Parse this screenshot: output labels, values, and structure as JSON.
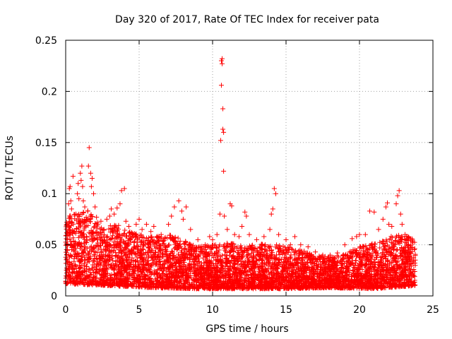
{
  "chart_data": {
    "type": "scatter",
    "title": "Day 320 of 2017, Rate Of TEC Index for receiver pata",
    "xlabel": "GPS time / hours",
    "ylabel": "ROTI / TECUs",
    "xlim": [
      0,
      25
    ],
    "ylim": [
      0,
      0.25
    ],
    "xticks": [
      0,
      5,
      10,
      15,
      20,
      25
    ],
    "yticks": [
      0,
      0.05,
      0.1,
      0.15,
      0.2,
      0.25
    ],
    "xtick_labels": [
      "0",
      "5",
      "10",
      "15",
      "20",
      "25"
    ],
    "ytick_labels": [
      "0",
      "0.05",
      "0.1",
      "0.15",
      "0.2",
      "0.25"
    ],
    "grid": true,
    "marker": "+",
    "color": "#ff0000",
    "series": [
      {
        "name": "ROTI",
        "points": [
          [
            0.1,
            0.07
          ],
          [
            0.2,
            0.09
          ],
          [
            0.25,
            0.105
          ],
          [
            0.3,
            0.107
          ],
          [
            0.35,
            0.093
          ],
          [
            0.4,
            0.085
          ],
          [
            0.5,
            0.117
          ],
          [
            0.55,
            0.063
          ],
          [
            0.7,
            0.08
          ],
          [
            0.8,
            0.1
          ],
          [
            0.85,
            0.11
          ],
          [
            0.9,
            0.095
          ],
          [
            1.0,
            0.12
          ],
          [
            1.05,
            0.113
          ],
          [
            1.1,
            0.127
          ],
          [
            1.15,
            0.107
          ],
          [
            1.2,
            0.093
          ],
          [
            1.3,
            0.087
          ],
          [
            1.4,
            0.077
          ],
          [
            1.5,
            0.083
          ],
          [
            1.55,
            0.127
          ],
          [
            1.6,
            0.145
          ],
          [
            1.7,
            0.12
          ],
          [
            1.75,
            0.107
          ],
          [
            1.8,
            0.115
          ],
          [
            1.9,
            0.1
          ],
          [
            2.0,
            0.087
          ],
          [
            2.1,
            0.077
          ],
          [
            2.2,
            0.07
          ],
          [
            2.4,
            0.073
          ],
          [
            2.6,
            0.065
          ],
          [
            2.8,
            0.075
          ],
          [
            3.0,
            0.078
          ],
          [
            3.1,
            0.085
          ],
          [
            3.3,
            0.08
          ],
          [
            3.5,
            0.086
          ],
          [
            3.7,
            0.09
          ],
          [
            3.8,
            0.103
          ],
          [
            4.0,
            0.105
          ],
          [
            4.1,
            0.073
          ],
          [
            4.3,
            0.068
          ],
          [
            4.6,
            0.06
          ],
          [
            4.8,
            0.07
          ],
          [
            5.0,
            0.075
          ],
          [
            5.2,
            0.065
          ],
          [
            5.5,
            0.07
          ],
          [
            5.8,
            0.063
          ],
          [
            6.0,
            0.068
          ],
          [
            6.5,
            0.06
          ],
          [
            7.0,
            0.07
          ],
          [
            7.2,
            0.078
          ],
          [
            7.4,
            0.087
          ],
          [
            7.7,
            0.093
          ],
          [
            7.9,
            0.083
          ],
          [
            8.0,
            0.075
          ],
          [
            8.2,
            0.087
          ],
          [
            8.5,
            0.065
          ],
          [
            9.0,
            0.055
          ],
          [
            9.5,
            0.05
          ],
          [
            9.8,
            0.058
          ],
          [
            10.0,
            0.055
          ],
          [
            10.3,
            0.06
          ],
          [
            10.5,
            0.08
          ],
          [
            10.55,
            0.152
          ],
          [
            10.6,
            0.206
          ],
          [
            10.6,
            0.23
          ],
          [
            10.65,
            0.232
          ],
          [
            10.65,
            0.227
          ],
          [
            10.7,
            0.183
          ],
          [
            10.7,
            0.163
          ],
          [
            10.75,
            0.16
          ],
          [
            10.75,
            0.122
          ],
          [
            10.8,
            0.078
          ],
          [
            11.0,
            0.065
          ],
          [
            11.2,
            0.09
          ],
          [
            11.3,
            0.088
          ],
          [
            11.5,
            0.06
          ],
          [
            11.8,
            0.058
          ],
          [
            12.0,
            0.068
          ],
          [
            12.2,
            0.082
          ],
          [
            12.3,
            0.078
          ],
          [
            12.5,
            0.06
          ],
          [
            13.0,
            0.055
          ],
          [
            13.5,
            0.058
          ],
          [
            13.9,
            0.065
          ],
          [
            14.0,
            0.08
          ],
          [
            14.1,
            0.085
          ],
          [
            14.2,
            0.105
          ],
          [
            14.3,
            0.1
          ],
          [
            14.5,
            0.06
          ],
          [
            15.0,
            0.055
          ],
          [
            15.3,
            0.05
          ],
          [
            15.6,
            0.058
          ],
          [
            16.0,
            0.05
          ],
          [
            16.5,
            0.048
          ],
          [
            17.0,
            0.043
          ],
          [
            17.5,
            0.04
          ],
          [
            18.0,
            0.04
          ],
          [
            18.5,
            0.042
          ],
          [
            19.0,
            0.05
          ],
          [
            19.5,
            0.056
          ],
          [
            19.8,
            0.058
          ],
          [
            20.0,
            0.06
          ],
          [
            20.4,
            0.06
          ],
          [
            20.7,
            0.083
          ],
          [
            21.0,
            0.082
          ],
          [
            21.3,
            0.065
          ],
          [
            21.6,
            0.075
          ],
          [
            21.8,
            0.087
          ],
          [
            21.9,
            0.091
          ],
          [
            22.0,
            0.07
          ],
          [
            22.2,
            0.068
          ],
          [
            22.5,
            0.09
          ],
          [
            22.6,
            0.098
          ],
          [
            22.7,
            0.103
          ],
          [
            22.8,
            0.08
          ],
          [
            22.9,
            0.07
          ],
          [
            23.1,
            0.06
          ],
          [
            23.3,
            0.058
          ]
        ]
      }
    ],
    "dense_band": {
      "x_range": [
        0,
        23.8
      ],
      "y_base": 0.005,
      "envelope": [
        [
          0,
          0.07
        ],
        [
          0.5,
          0.085
        ],
        [
          1.0,
          0.08
        ],
        [
          1.5,
          0.085
        ],
        [
          2.0,
          0.075
        ],
        [
          2.5,
          0.065
        ],
        [
          3.0,
          0.07
        ],
        [
          3.5,
          0.07
        ],
        [
          4.0,
          0.065
        ],
        [
          5.0,
          0.06
        ],
        [
          6.0,
          0.058
        ],
        [
          7.0,
          0.06
        ],
        [
          8.0,
          0.055
        ],
        [
          9.0,
          0.048
        ],
        [
          10.0,
          0.05
        ],
        [
          11.0,
          0.052
        ],
        [
          12.0,
          0.05
        ],
        [
          13.0,
          0.05
        ],
        [
          14.0,
          0.052
        ],
        [
          15.0,
          0.048
        ],
        [
          16.0,
          0.045
        ],
        [
          17.0,
          0.04
        ],
        [
          18.0,
          0.038
        ],
        [
          19.0,
          0.042
        ],
        [
          20.0,
          0.048
        ],
        [
          21.0,
          0.052
        ],
        [
          22.0,
          0.058
        ],
        [
          23.0,
          0.06
        ],
        [
          23.8,
          0.055
        ]
      ],
      "floor": [
        [
          0,
          0.012
        ],
        [
          3.0,
          0.01
        ],
        [
          6.0,
          0.008
        ],
        [
          9.0,
          0.007
        ],
        [
          12.0,
          0.007
        ],
        [
          15.0,
          0.007
        ],
        [
          18.0,
          0.008
        ],
        [
          21.0,
          0.007
        ],
        [
          23.8,
          0.01
        ]
      ]
    }
  }
}
